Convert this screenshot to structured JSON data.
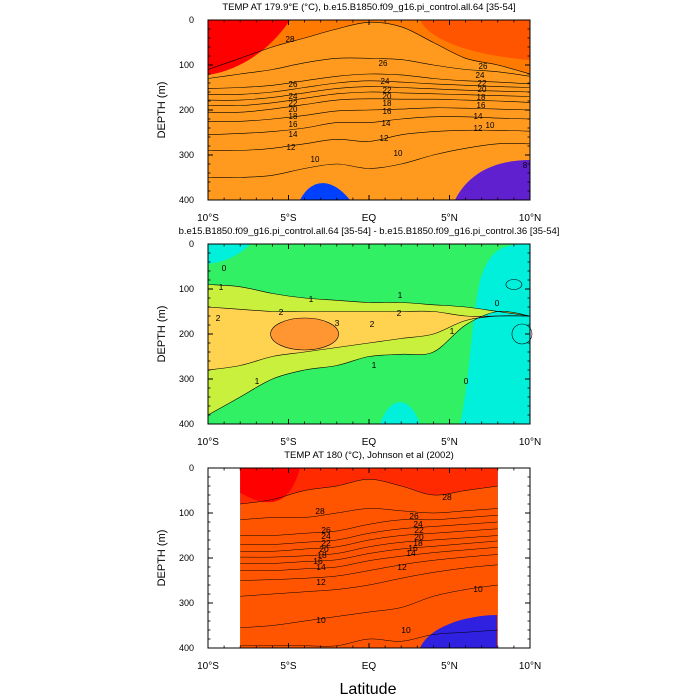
{
  "xlabel": "Latitude",
  "chart_data": [
    {
      "type": "heatmap",
      "title": "TEMP AT 179.9°E (°C), b.e15.B1850.f09_g16.pi_control.all.64 [35-54]",
      "xlabel": "Latitude",
      "ylabel": "DEPTH (m)",
      "xlim": [
        -10,
        10
      ],
      "ylim": [
        400,
        0
      ],
      "x_ticks": [
        -10,
        -5,
        0,
        5,
        10
      ],
      "x_tick_labels": [
        "10°S",
        "5°S",
        "EQ",
        "5°N",
        "10°N"
      ],
      "y_ticks": [
        0,
        100,
        200,
        300,
        400
      ],
      "y_tick_labels": [
        "0",
        "100",
        "200",
        "300",
        "400"
      ],
      "contour_labels": [
        "28",
        "26",
        "26",
        "26",
        "24",
        "24",
        "24",
        "22",
        "22",
        "22",
        "20",
        "20",
        "20",
        "18",
        "18",
        "18",
        "16",
        "16",
        "16",
        "14",
        "14",
        "14",
        "12",
        "12",
        "12",
        "10",
        "10",
        "10",
        "8"
      ],
      "color_scale": {
        "levels": [
          30,
          29,
          28,
          27,
          26,
          25,
          24,
          23,
          22,
          21,
          20,
          19,
          18,
          17,
          16,
          15,
          14,
          13,
          12,
          11,
          10,
          9,
          8,
          7
        ],
        "colors": [
          "#ff0000",
          "#ff2a00",
          "#ff5500",
          "#ff7a00",
          "#ff9a1e",
          "#ffb43c",
          "#ffd23c",
          "#f0f03c",
          "#c0f03c",
          "#78e63c",
          "#3cdc3c",
          "#00e678",
          "#00f0b4",
          "#00f0f0",
          "#00d8f0",
          "#00c0f0",
          "#2ab4f0",
          "#3ca0f0",
          "#3c8cf0",
          "#2878f0",
          "#1460ff",
          "#0040ff",
          "#3020e0",
          "#6020d0"
        ]
      },
      "isotherm_depths": {
        "lat": [
          -10,
          -8,
          -6,
          -4,
          -2,
          0,
          2,
          4,
          6,
          8,
          10
        ],
        "t28": [
          110,
          85,
          60,
          40,
          20,
          5,
          15,
          50,
          85,
          100,
          120
        ],
        "t26": [
          130,
          120,
          110,
          95,
          85,
          85,
          88,
          100,
          110,
          115,
          125
        ],
        "t24": [
          152,
          150,
          145,
          135,
          125,
          120,
          122,
          130,
          135,
          138,
          142
        ],
        "t22": [
          165,
          165,
          160,
          150,
          140,
          135,
          138,
          142,
          145,
          148,
          150
        ],
        "t20": [
          178,
          178,
          172,
          162,
          152,
          148,
          150,
          153,
          156,
          158,
          160
        ],
        "t18": [
          190,
          190,
          184,
          174,
          164,
          160,
          162,
          164,
          166,
          168,
          170
        ],
        "t16": [
          205,
          205,
          198,
          188,
          178,
          175,
          176,
          176,
          178,
          180,
          183
        ],
        "t14": [
          225,
          225,
          220,
          212,
          202,
          200,
          198,
          195,
          196,
          198,
          200
        ],
        "t12": [
          255,
          252,
          248,
          240,
          228,
          228,
          220,
          215,
          215,
          218,
          220
        ],
        "t10": [
          290,
          290,
          285,
          275,
          265,
          270,
          255,
          248,
          245,
          245,
          247
        ],
        "t8": [
          350,
          350,
          345,
          330,
          320,
          330,
          320,
          300,
          285,
          275,
          275
        ]
      }
    },
    {
      "type": "heatmap",
      "title": "b.e15.B1850.f09_g16.pi_control.all.64 [35-54] - b.e15.B1850.f09_g16.pi_control.36 [35-54]",
      "xlabel": "Latitude",
      "ylabel": "DEPTH (m)",
      "xlim": [
        -10,
        10
      ],
      "ylim": [
        400,
        0
      ],
      "x_ticks": [
        -10,
        -5,
        0,
        5,
        10
      ],
      "x_tick_labels": [
        "10°S",
        "5°S",
        "EQ",
        "5°N",
        "10°N"
      ],
      "y_ticks": [
        0,
        100,
        200,
        300,
        400
      ],
      "y_tick_labels": [
        "0",
        "100",
        "200",
        "300",
        "400"
      ],
      "contour_labels": [
        "0",
        "1",
        "1",
        "1",
        "2",
        "2",
        "2",
        "2",
        "3",
        "1",
        "1",
        "1",
        "0",
        "0"
      ],
      "color_scale": {
        "levels": [
          -1,
          0,
          1,
          2,
          3
        ],
        "colors": [
          "#00f0dc",
          "#32f064",
          "#c8f03c",
          "#ffd250",
          "#ff9632"
        ]
      },
      "difference_zones": {
        "lat": [
          -10,
          -8,
          -6,
          -4,
          -2,
          0,
          2,
          4,
          6,
          8,
          10
        ],
        "d1_top": [
          90,
          95,
          110,
          120,
          125,
          130,
          130,
          135,
          140,
          150,
          160
        ],
        "d1_bottom": [
          380,
          340,
          300,
          280,
          270,
          250,
          245,
          240,
          180,
          150,
          160
        ],
        "d2_top": [
          140,
          145,
          150,
          150,
          150,
          150,
          150,
          150,
          160,
          160,
          160
        ],
        "d2_bottom": [
          280,
          270,
          250,
          240,
          230,
          220,
          210,
          200,
          170,
          160,
          160
        ],
        "d3_core_lat": -4,
        "d3_core_depth": 200
      }
    },
    {
      "type": "heatmap",
      "title": "TEMP AT 180 (°C), Johnson et al (2002)",
      "xlabel": "Latitude",
      "ylabel": "DEPTH (m)",
      "xlim": [
        -10,
        10
      ],
      "ylim": [
        400,
        0
      ],
      "data_lat_range": [
        -8,
        8
      ],
      "x_ticks": [
        -10,
        -5,
        0,
        5,
        10
      ],
      "x_tick_labels": [
        "10°S",
        "5°S",
        "EQ",
        "5°N",
        "10°N"
      ],
      "y_ticks": [
        0,
        100,
        200,
        300,
        400
      ],
      "y_tick_labels": [
        "0",
        "100",
        "200",
        "300",
        "400"
      ],
      "contour_labels": [
        "28",
        "28",
        "26",
        "26",
        "24",
        "24",
        "22",
        "22",
        "20",
        "20",
        "18",
        "18",
        "16",
        "16",
        "14",
        "14",
        "12",
        "12",
        "10",
        "10",
        "10"
      ],
      "isotherm_depths": {
        "lat": [
          -8,
          -6,
          -4,
          -2,
          0,
          2,
          4,
          6,
          8
        ],
        "t29": [
          80,
          70,
          50,
          40,
          25,
          40,
          60,
          50,
          40
        ],
        "t28": [
          115,
          110,
          110,
          100,
          90,
          95,
          100,
          95,
          90
        ],
        "t26": [
          150,
          150,
          145,
          140,
          125,
          115,
          115,
          110,
          105
        ],
        "t24": [
          170,
          170,
          165,
          160,
          145,
          135,
          130,
          125,
          120
        ],
        "t22": [
          185,
          185,
          180,
          175,
          160,
          150,
          145,
          140,
          135
        ],
        "t20": [
          198,
          198,
          195,
          190,
          175,
          165,
          160,
          155,
          150
        ],
        "t18": [
          212,
          212,
          208,
          204,
          190,
          180,
          174,
          168,
          162
        ],
        "t16": [
          228,
          228,
          224,
          220,
          206,
          196,
          188,
          182,
          176
        ],
        "t14": [
          250,
          248,
          245,
          240,
          228,
          215,
          205,
          198,
          192
        ],
        "t12": [
          285,
          280,
          275,
          270,
          260,
          245,
          232,
          222,
          215
        ],
        "t10": [
          355,
          350,
          340,
          330,
          320,
          310,
          285,
          270,
          260
        ],
        "t8": [
          395,
          395,
          395,
          395,
          380,
          385,
          370,
          365,
          360
        ]
      }
    }
  ]
}
